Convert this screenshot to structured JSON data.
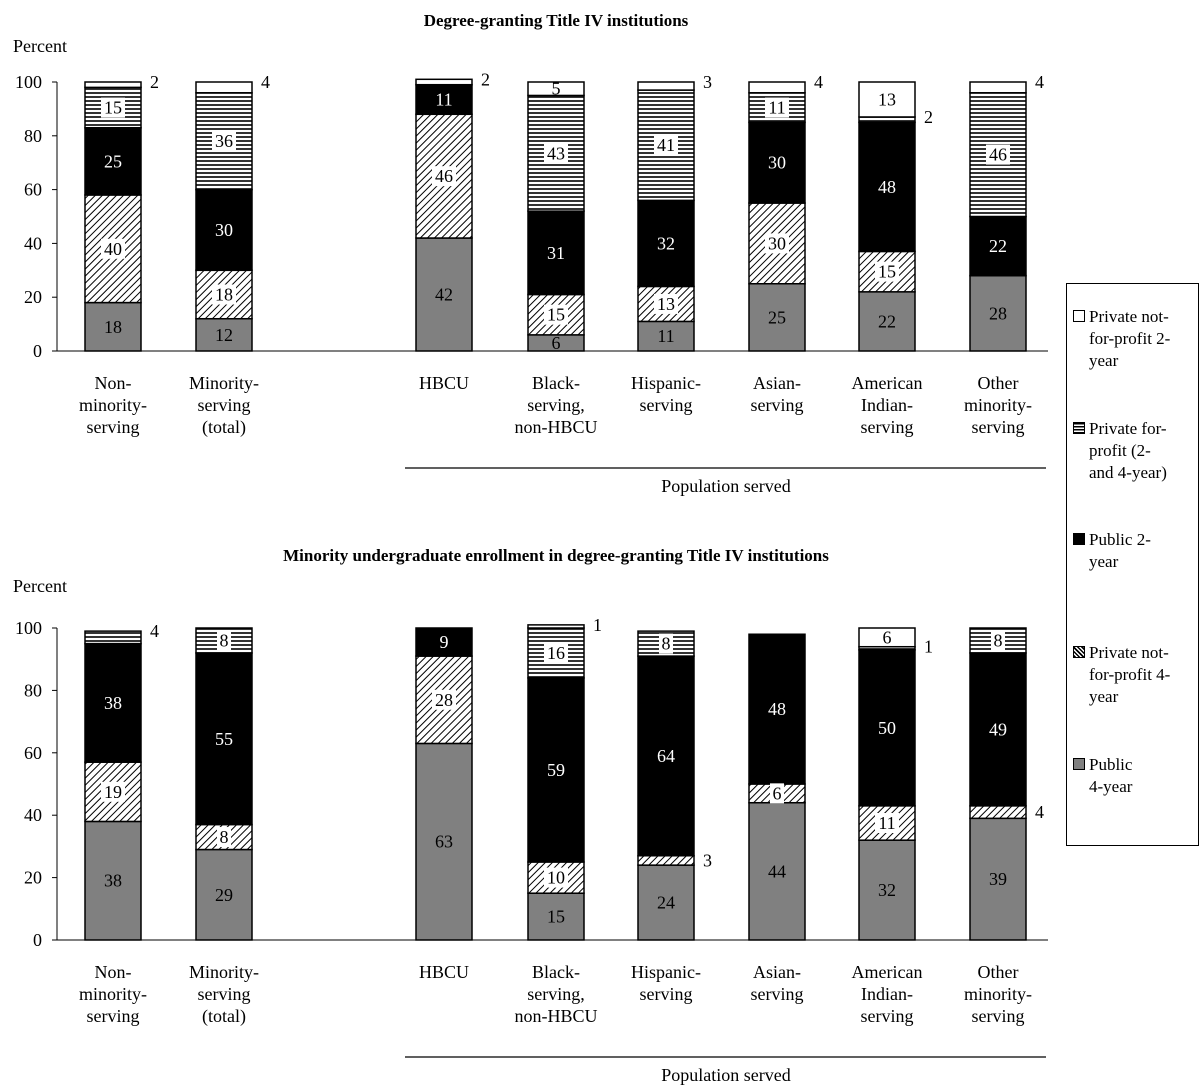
{
  "chart_data": [
    {
      "type": "bar",
      "stacked": true,
      "title": "Degree-granting Title IV institutions",
      "ylabel": "Percent",
      "ylim": [
        0,
        100
      ],
      "yticks": [
        0,
        20,
        40,
        60,
        80,
        100
      ],
      "xlabel_group": "Population served",
      "categories": [
        "Non-\nminority-\nserving",
        "Minority-\nserving\n(total)",
        "HBCU",
        "Black-\nserving,\nnon-HBCU",
        "Hispanic-\nserving",
        "Asian-\nserving",
        "American\nIndian-\nserving",
        "Other\nminority-\nserving"
      ],
      "series": [
        {
          "name": "Public 4-year",
          "values": [
            18,
            12,
            42,
            6,
            11,
            25,
            22,
            28
          ]
        },
        {
          "name": "Private not-for-profit 4-year",
          "values": [
            40,
            18,
            46,
            15,
            13,
            30,
            15,
            0
          ]
        },
        {
          "name": "Public 2-year",
          "values": [
            25,
            30,
            11,
            31,
            32,
            30,
            48,
            22
          ]
        },
        {
          "name": "Private for-profit (2- and 4-year)",
          "values": [
            15,
            36,
            0,
            43,
            41,
            11,
            2,
            46
          ]
        },
        {
          "name": "Private not-for-profit 2-year",
          "values": [
            2,
            4,
            2,
            5,
            3,
            4,
            13,
            4
          ]
        }
      ],
      "labels": [
        [
          "18",
          "40",
          "25",
          "15",
          "2"
        ],
        [
          "12",
          "18",
          "30",
          "36",
          "4"
        ],
        [
          "42",
          "46",
          "11",
          "",
          "2"
        ],
        [
          "6",
          "15",
          "31",
          "43",
          "5"
        ],
        [
          "11",
          "13",
          "32",
          "41",
          "3"
        ],
        [
          "25",
          "30",
          "30",
          "11",
          "4"
        ],
        [
          "22",
          "15",
          "48",
          "2",
          "13"
        ],
        [
          "28",
          "",
          "22",
          "46",
          "4"
        ]
      ]
    },
    {
      "type": "bar",
      "stacked": true,
      "title": "Minority undergraduate enrollment in degree-granting Title IV institutions",
      "ylabel": "Percent",
      "ylim": [
        0,
        100
      ],
      "yticks": [
        0,
        20,
        40,
        60,
        80,
        100
      ],
      "xlabel_group": "Population served",
      "categories": [
        "Non-\nminority-\nserving",
        "Minority-\nserving\n(total)",
        "HBCU",
        "Black-\nserving,\nnon-HBCU",
        "Hispanic-\nserving",
        "Asian-\nserving",
        "American\nIndian-\nserving",
        "Other\nminority-\nserving"
      ],
      "series": [
        {
          "name": "Public 4-year",
          "values": [
            38,
            29,
            63,
            15,
            24,
            44,
            32,
            39
          ]
        },
        {
          "name": "Private not-for-profit 4-year",
          "values": [
            19,
            8,
            28,
            10,
            3,
            6,
            11,
            4
          ]
        },
        {
          "name": "Public 2-year",
          "values": [
            38,
            55,
            9,
            59,
            64,
            48,
            50,
            49
          ]
        },
        {
          "name": "Private for-profit (2- and 4-year)",
          "values": [
            4,
            8,
            0,
            16,
            8,
            0,
            1,
            8
          ]
        },
        {
          "name": "Private not-for-profit 2-year",
          "values": [
            0,
            0,
            0,
            1,
            0,
            0,
            6,
            0
          ]
        }
      ],
      "labels": [
        [
          "38",
          "19",
          "38",
          "4",
          ""
        ],
        [
          "29",
          "8",
          "55",
          "8",
          ""
        ],
        [
          "63",
          "28",
          "9",
          "",
          ""
        ],
        [
          "15",
          "10",
          "59",
          "16",
          "1"
        ],
        [
          "24",
          "3",
          "64",
          "8",
          ""
        ],
        [
          "44",
          "6",
          "48",
          "",
          ""
        ],
        [
          "32",
          "11",
          "50",
          "1",
          "6"
        ],
        [
          "39",
          "4",
          "49",
          "8",
          ""
        ]
      ]
    }
  ],
  "legend": {
    "items": [
      {
        "label": "Private not-for-profit 2-year",
        "text": "Private not-\nfor-profit 2-\nyear",
        "pattern": "white"
      },
      {
        "label": "Private for-profit (2- and 4-year)",
        "text": "Private for-\nprofit (2-\nand 4-year)",
        "pattern": "hstripe"
      },
      {
        "label": "Public 2-year",
        "text": "Public 2-\nyear",
        "pattern": "black"
      },
      {
        "label": "Private not-for-profit 4-year",
        "text": "Private not-\nfor-profit 4-\nyear",
        "pattern": "diag"
      },
      {
        "label": "Public 4-year",
        "text": "Public\n4-year",
        "pattern": "gray"
      }
    ]
  },
  "colors": {
    "public4": "#808080",
    "public2": "#000000",
    "private2": "#ffffff"
  }
}
